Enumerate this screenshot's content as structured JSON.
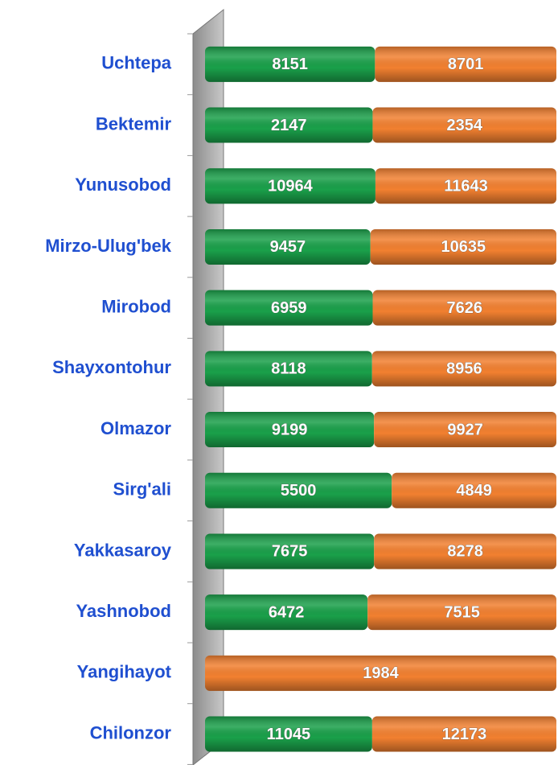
{
  "chart_data": {
    "type": "bar100h",
    "categories": [
      "Uchtepa",
      "Bektemir",
      "Yunusobod",
      "Mirzo-Ulug'bek",
      "Mirobod",
      "Shayxontohur",
      "Olmazor",
      "Sirg'ali",
      "Yakkasaroy",
      "Yashnobod",
      "Yangihayot",
      "Chilonzor"
    ],
    "series": [
      {
        "color": "#1aa04a",
        "values": [
          8151,
          2147,
          10964,
          9457,
          6959,
          8118,
          9199,
          5500,
          7675,
          6472,
          null,
          11045
        ]
      },
      {
        "color": "#f28030",
        "values": [
          8701,
          2354,
          11643,
          10635,
          7626,
          8956,
          9927,
          4849,
          8278,
          7515,
          1984,
          12173
        ]
      }
    ]
  }
}
